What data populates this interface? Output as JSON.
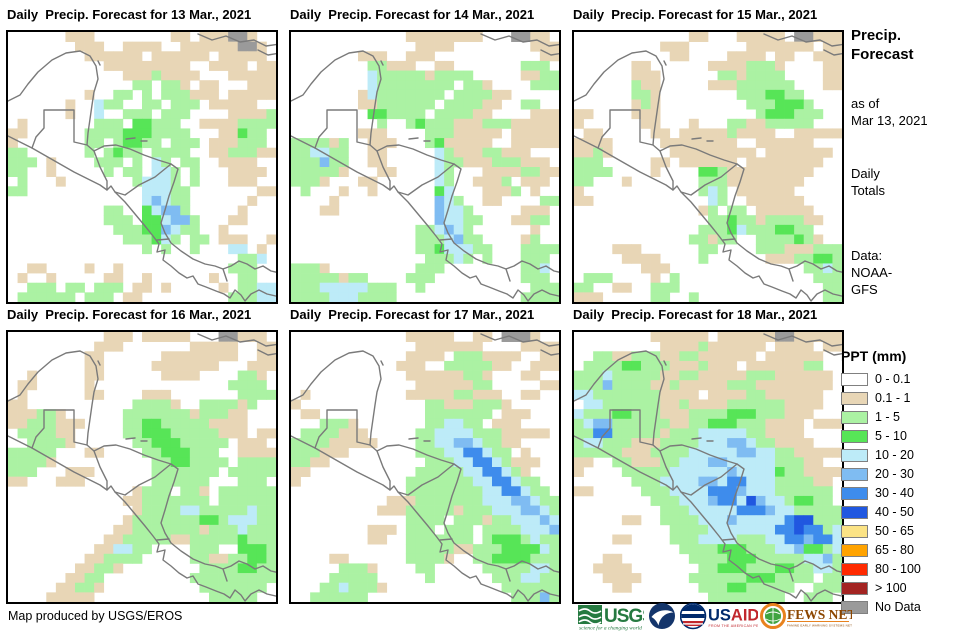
{
  "panels": [
    {
      "title": "Daily  Precip. Forecast for 13 Mar., 2021",
      "grid": [
        "......ttt........tt.tttnnt..",
        ".......ttt..tttt..ttttttnnt.",
        "........tttttt.tttttt.ttttt.",
        "..........ttttttttt..tttt.tt",
        "............tttgtttt...ttttt",
        ".............gg.ggt.tt...ttt",
        "........t..gg.g.gggttt.ttttt",
        "......t..cgg..gg.ggg.ttttt..",
        "......t..c..ggg.ggg....ttttg",
        ".t.......ggg.GGggg..ttttgggg",
        "tt......ggggGGGgggg...ttGgg.",
        "t.......gg.gGGgg.ggg.tttggg.",
        "gg......g.gGgg.gggg..ttgggtt",
        "ggg.t....ggg.g.cg.gg..tttt..",
        "gg..t.....g.gg.ccg.g...tttt.",
        ".g...t.......gcccg.g...ttt..",
        "gg............cccgg.......tt",
        "..............cbcgg......t..",
        "..........gg..Gcbbg.....t...",
        "..........ggg.GGcbbg...tt...",
        "...........gggGGbcgg..t.....",
        "............gggGcg.gg.ttt..t",
        "..............g.g..g...cc.t.",
        "........................ggc.",
        "..tt....t..t...........ggg..",
        ".t..t.....tt..t......t..gg..",
        "..ggg.gg.ggg.tt.t.....t.ggcc",
        ".gggggg.ggg.tt.........gggcc"
      ]
    },
    {
      "title": "Daily  Precip. Forecast for 14 Mar., 2021",
      "grid": [
        "............tttttttt...nntt.",
        ".............tttt........ttt",
        ".......ttt..ttt...........tt",
        "........ggttt..tt.......ggg.",
        "........cgggggtgggg.....ttgg",
        "........cgggggggg.ggt....ggg",
        ".......tcggggggg.ggggtt.....",
        ".......ttgggggg.ggggtt..gg..",
        "........GGgggg.ggggtt....ttt",
        ".........g..gGgggtttgggttttt",
        ".......ttt....gggttttt.ttttt",
        "ggggtg..ttt...gGttttt..ttttt",
        "ggccgg..tt.....cgtttggttt...",
        "gggbgg..tt.....cggtttgggttt.",
        "gggggt...tt....cg...ttttggtt",
        "gggt...tt......cg..tttg.ttt.",
        ".g...t..t......Gc...tttg.t..",
        "....t..........bcg..tt....gg",
        "...tt..........bccg.....ttt.",
        "...............bccgg...ttgg.",
        ".............ggcbcg......t..",
        ".............gggcbgg....tg..",
        ".............ggGcccgg...gggg",
        "..............gggcg.g...ggg.",
        "gggt.........ggg........ggc.",
        "gggggtgg....ggg.........ggg.",
        "gggcccccggg..g...........ggg",
        "ggggcccgggg.............gggg"
      ]
    },
    {
      "title": "Daily  Precip. Forecast for 15 Mar., 2021",
      "grid": [
        "............tt...ttttt.nnttt",
        ".........ttt......ttttttt.tt",
        "..........tt....tttt.tt..ttt",
        "......tt......ttttgggt....tt",
        "......ttt......ggtgggg....tt",
        "......gtt.....tttgggggg...tt",
        "......ggt........gggGGgg....",
        "......tgt.........gggGGGg...",
        "tt....ttt..........gGGGggg..",
        "t......tt...t...ggttggggg...",
        ".tt.....tt.tttttgtttt..ttttt",
        "tttt.....tttttttt..tttttt...",
        "ttgt......ttttttttt.ttttttt.",
        "ggg.....tt.tttttt.tttttttt..",
        "gggg....t....GGgttttttttt...",
        "gg...t.......gggtttttttt....",
        "t............gcg.tttttt.....",
        "tt............cg..tttttt....",
        ".............tg.gg.tttttt...",
        "..............ggGggtggggtt..",
        ".............gggGcgggGGgg...",
        "............ggtgg..ggggGgt..",
        "....ttt......gg....gggtttggg",
        ".....tttt....g......tttggGGg",
        ".......ttt..............ggcg",
        ".ggg....t.g..............ggg",
        "gg..tt..ggg...............gg",
        "ttt.....gg..g.............gg"
      ]
    },
    {
      "title": "Daily  Precip. Forecast for 16 Mar., 2021",
      "grid": [
        "..........ttt.ttttt...nnttt.",
        ".........ttt.......ttttt..tt",
        "........tt......tttttttt..tt",
        "........tt.....ttttttt...ttt",
        "..t.....tt......tttt....ggt.",
        ".tt.....t..............gggg.",
        ".t......tt....ttt.......gggg",
        "tt...........ggggt..ggggtg..",
        "tttggt......gggggggtgggtt...",
        "ttgggttt....ggGGgggggtttt...",
        ".ggggtt.....ggGGGgggggttt.tt",
        "..ggggt......ggGGGggggg.ttt.",
        "ggggg...tt....ggGGGggg..tttt",
        "ggggt..........ggGGgggg.gggg",
        "ggg...ttt......ggggggg.ggggg",
        "tt...ttt.......gggggg...ggg.",
        ".............tggg.ggt.gggggg",
        "............ttggggggg.gggggg",
        ".............tggggccgggggcgg",
        "............tgggggggGGgcccgg",
        "...........ttgggggggtgggcggg",
        "..........ttgggggttgggggGggg",
        ".........ttccgg....ggg..GGGg",
        "........ttgggg.....ggttggGGg",
        ".......ttggt........ggggGGgg",
        "......ttgg.........ggggggggg",
        ".....ttggt..........ggggggg.",
        "....ttttt............ggggg.."
      ]
    },
    {
      "title": "Daily  Precip. Forecast for 17 Mar., 2021",
      "grid": [
        "............ttttt..tt.nnnt..",
        ".............ttttttt....tttt",
        "............tttt.gggtttt..tt",
        "...........ttt..gggggtt..ttt",
        "............ttttttggt...tt..",
        ".............ttttttgg.....tt",
        ".t..........tttttggttt..tt..",
        "t.............ggtttgggt.....",
        ".tt...........ggggggg.ttt...",
        "...gggt.......ggccgg.ttt....",
        ".ggggttt.....ggccccgggttttt.",
        "ggggttttt....ggccbbcggtt....",
        "gggttt.......gggccBBcgg.t...",
        "ggtt..........gggccBBcgttt..",
        "tt...........gggggccBBcgt...",
        "t...........gggggggccBBcgg..",
        "............ggggggggccBBcgg.",
        "..........tttgggggggcccbbcgg",
        ".........tttgggggtgggcccbbcg",
        "............gggg.gggtggcccbc",
        "........ttt.ggg.ggg.ggggcccb",
        "........tt..ggggggg.gGGGgcgg",
        "............gggggttgggGGGGcg",
        "....tt......ggggt..ggGGGGggg",
        ".....gggt....gg.....gggggccg",
        "....ggggg.....g......gggccgg",
        "...ggcgggt............gggggg",
        "..gggggg...............gggbg"
      ]
    },
    {
      "title": "Daily  Precip. Forecast for 18 Mar., 2021",
      "grid": [
        "........tttttt.ttttttnnttttt",
        ".........ttttgtttttt.tttt.tt",
        "..ggttgggttggtttttt.tttttt..",
        ".ggggGGgggtttgttt.ttttttgg..",
        "gggcgggggttggtttttgggtttttt.",
        "gggbggggttgtttttgggtttttttt.",
        "ccgggggggtttt.ttttggtttttt..",
        ".ccggggggttgttttggggggtttt..",
        "cgggGGgggtttggggGGGgggttt...",
        "gcbbggggggttggGGGgggtttt.ttt",
        "ggBBgggggtgggcccccggtttt....",
        "gccgggtttggggcccbbcggtttt...",
        "gggggtttggggcccccbbccggttttt",
        "tt..ggtttggcccbbcccccgggtt..",
        "t....gggggccccccbccccGggtttt",
        "......gggccccbbcBBcccggggtt.",
        "tt.....gggccccBBBbcccgggggg.",
        "........gggcccbBBcDbccgGGgg.",
        ".........gggcccccBBBbccggggg",
        ".....tt..ggggcccbcccccBDDggg",
        "..........ggggcccccccBBDBBgc",
        "....tt....gggccccgggccBBbBBc",
        "...........ggggGGGgggccbGGgc",
        "...tt.......ggggGGGgggggccbg",
        "..tttt.......ggGGGgggGGggccg",
        "...tttt.....ggggggGGGgggg.gg",
        "....tt.......gggGGggggg..ggg",
        "..............gggggggg..ggg."
      ]
    }
  ],
  "palette": {
    ".": "#FFFFFF",
    "t": "#E8D6B6",
    "g": "#ABF2A3",
    "G": "#57E557",
    "c": "#BDEBF8",
    "b": "#7FBCF2",
    "B": "#3E8CEC",
    "D": "#2057E0",
    "y": "#FBE385",
    "o": "#FFA300",
    "r": "#FF2A00",
    "R": "#A32422",
    "n": "#9A9A9A"
  },
  "sidebar": {
    "title_line1": "Precip.",
    "title_line2": "Forecast",
    "asof_label": "as of",
    "asof_date": "Mar 13, 2021",
    "totals_line1": "Daily",
    "totals_line2": "Totals",
    "data_label": "Data:",
    "data_source_line1": "NOAA-",
    "data_source_line2": "GFS"
  },
  "legend": {
    "title": "PPT (mm)",
    "items": [
      {
        "label": "0 - 0.1",
        "color": "#FFFFFF"
      },
      {
        "label": "0.1 - 1",
        "color": "#E8D6B6"
      },
      {
        "label": "1 - 5",
        "color": "#ABF2A3"
      },
      {
        "label": "5 - 10",
        "color": "#57E557"
      },
      {
        "label": "10 - 20",
        "color": "#BDEBF8"
      },
      {
        "label": "20 - 30",
        "color": "#7FBCF2"
      },
      {
        "label": "30 - 40",
        "color": "#3E8CEC"
      },
      {
        "label": "40 - 50",
        "color": "#2057E0"
      },
      {
        "label": "50 - 65",
        "color": "#FBE385"
      },
      {
        "label": "65 - 80",
        "color": "#FFA300"
      },
      {
        "label": "80 - 100",
        "color": "#FF2A00"
      },
      {
        "label": "> 100",
        "color": "#A32422"
      },
      {
        "label": "No Data",
        "color": "#9A9A9A"
      }
    ]
  },
  "footer": {
    "credit": "Map produced by USGS/EROS",
    "logos": {
      "usgs": {
        "text": "USGS",
        "tagline": "science for a changing world",
        "color": "#267A41"
      },
      "noaa": {
        "color": "#14356B"
      },
      "usaid": {
        "text_us": "US",
        "text_aid": "AID",
        "tagline": "FROM THE AMERICAN PEOPLE",
        "color_us": "#002A6C",
        "color_aid": "#C1272D"
      },
      "fewsnet": {
        "text": "FEWS NET",
        "tagline": "FAMINE EARLY WARNING SYSTEMS NETWORK",
        "color": "#E8821E",
        "text_color": "#8C4600"
      }
    }
  }
}
